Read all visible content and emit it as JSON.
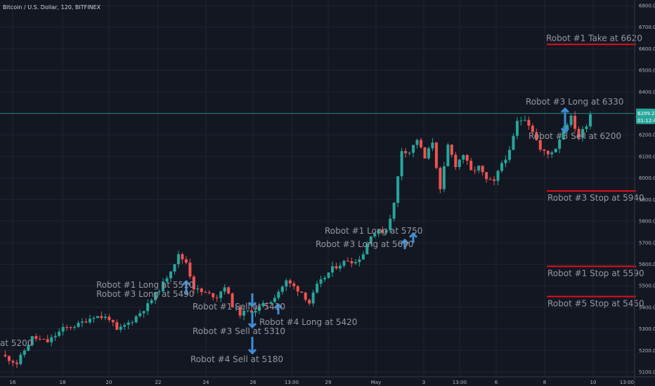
{
  "chart_data": {
    "type": "candlestick",
    "title": "Bitcoin / U.S. Dollar, 120, BITFINEX",
    "y_axis": {
      "min": 5100,
      "max": 6800,
      "ticks": [
        "5100.0",
        "5200.0",
        "5300.0",
        "5400.0",
        "5500.0",
        "5600.0",
        "5700.0",
        "5800.0",
        "5900.0",
        "6000.0",
        "6100.0",
        "6200.0",
        "6300.0",
        "6400.0",
        "6500.0",
        "6600.0",
        "6700.0",
        "6800.0"
      ]
    },
    "x_axis": {
      "ticks": [
        "16",
        "18",
        "20",
        "22",
        "24",
        "26",
        "13:00",
        "29",
        "May",
        "3",
        "13:00",
        "6",
        "8",
        "10",
        "13:00"
      ]
    },
    "price_tag": {
      "value": 6299.2,
      "label": "6299.2",
      "countdown": "01:12:41"
    },
    "colors": {
      "up": "#26a69a",
      "down": "#ef5350",
      "level": "#e0101a",
      "arrow": "#3d8fd6",
      "price_line": "#26a69a",
      "bg": "#131722"
    },
    "grid": true,
    "levels": [
      {
        "label": "Robot #1 Take at 6620",
        "value": 6620
      },
      {
        "label": "Robot #3 Stop at 5940",
        "value": 5940
      },
      {
        "label": "Robot #1 Stop at 5590",
        "value": 5590
      },
      {
        "label": "Robot #5 Stop at 5450",
        "value": 5450
      }
    ],
    "annotations": [
      "Robot #3 Long at 6330",
      "Robot #3 Sell at 6200",
      "Robot #1 Long at 5750",
      "Robot #3 Long at 5690",
      "Robot #1 Long at 5510",
      "Robot #3 Long at 5490",
      "Robot #1 Sell at 5410",
      "Robot #4 Long at 5420",
      "Robot #3 Sell at 5310",
      "Robot #4 Sell at 5180",
      "at 5200"
    ],
    "path": [
      [
        0,
        5180
      ],
      [
        4,
        5140
      ],
      [
        8,
        5260
      ],
      [
        12,
        5240
      ],
      [
        16,
        5300
      ],
      [
        20,
        5320
      ],
      [
        24,
        5360
      ],
      [
        28,
        5350
      ],
      [
        30,
        5290
      ],
      [
        34,
        5340
      ],
      [
        38,
        5410
      ],
      [
        42,
        5510
      ],
      [
        46,
        5640
      ],
      [
        48,
        5610
      ],
      [
        50,
        5490
      ],
      [
        52,
        5470
      ],
      [
        56,
        5450
      ],
      [
        58,
        5500
      ],
      [
        60,
        5410
      ],
      [
        62,
        5370
      ],
      [
        66,
        5390
      ],
      [
        70,
        5430
      ],
      [
        74,
        5520
      ],
      [
        78,
        5470
      ],
      [
        80,
        5420
      ],
      [
        82,
        5500
      ],
      [
        86,
        5580
      ],
      [
        90,
        5620
      ],
      [
        92,
        5610
      ],
      [
        94,
        5650
      ],
      [
        96,
        5740
      ],
      [
        100,
        5760
      ],
      [
        102,
        5880
      ],
      [
        104,
        6130
      ],
      [
        106,
        6120
      ],
      [
        108,
        6180
      ],
      [
        110,
        6090
      ],
      [
        112,
        6170
      ],
      [
        114,
        5940
      ],
      [
        116,
        6150
      ],
      [
        118,
        6060
      ],
      [
        120,
        6110
      ],
      [
        122,
        6030
      ],
      [
        124,
        6050
      ],
      [
        126,
        5990
      ],
      [
        128,
        5980
      ],
      [
        130,
        6070
      ],
      [
        132,
        6120
      ],
      [
        134,
        6260
      ],
      [
        136,
        6280
      ],
      [
        138,
        6220
      ],
      [
        140,
        6130
      ],
      [
        142,
        6110
      ],
      [
        144,
        6140
      ],
      [
        146,
        6230
      ],
      [
        148,
        6280
      ],
      [
        150,
        6190
      ],
      [
        152,
        6250
      ],
      [
        153,
        6299.2
      ]
    ]
  }
}
